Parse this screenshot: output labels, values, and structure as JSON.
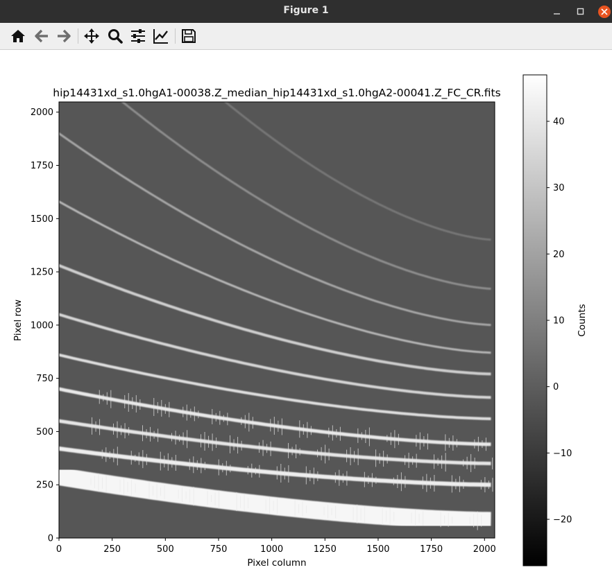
{
  "window": {
    "title": "Figure 1",
    "minimize_icon": "minimize-icon",
    "maximize_icon": "maximize-icon",
    "close_icon": "close-icon"
  },
  "toolbar": {
    "buttons": [
      {
        "name": "home-button",
        "icon": "home-icon"
      },
      {
        "name": "back-button",
        "icon": "arrow-left-icon"
      },
      {
        "name": "forward-button",
        "icon": "arrow-right-icon"
      },
      {
        "name": "pan-button",
        "icon": "move-icon"
      },
      {
        "name": "zoom-button",
        "icon": "magnifier-icon"
      },
      {
        "name": "configure-subplots-button",
        "icon": "sliders-icon"
      },
      {
        "name": "edit-axis-button",
        "icon": "line-chart-icon"
      },
      {
        "name": "save-button",
        "icon": "floppy-disk-icon"
      }
    ]
  },
  "colors": {
    "titlebar": "#2f2f2f",
    "toolbar": "#efefef",
    "close_button": "#e95420",
    "image_background": "#565656"
  },
  "chart_data": {
    "type": "heatmap",
    "title": "hip14431xd_s1.0hgA1-00038.Z_median_hip14431xd_s1.0hgA2-00041.Z_FC_CR.fits",
    "xlabel": "Pixel column",
    "ylabel": "Pixel row",
    "xlim": [
      0,
      2048
    ],
    "ylim": [
      0,
      2048
    ],
    "xticks": [
      "0",
      "250",
      "500",
      "750",
      "1000",
      "1250",
      "1500",
      "1750",
      "2000"
    ],
    "yticks": [
      "0",
      "250",
      "500",
      "750",
      "1000",
      "1250",
      "1500",
      "1750",
      "2000"
    ],
    "colormap": "gray",
    "colorbar": {
      "label": "Counts",
      "range": [
        -27,
        47
      ],
      "ticks": [
        "−20",
        "−10",
        "0",
        "10",
        "20",
        "30",
        "40"
      ]
    },
    "orders": [
      {
        "y_left": 290,
        "y_right": 80,
        "brightness": 1.0,
        "width": 26
      },
      {
        "y_left": 420,
        "y_right": 250,
        "brightness": 0.95,
        "width": 6
      },
      {
        "y_left": 550,
        "y_right": 350,
        "brightness": 0.9,
        "width": 5
      },
      {
        "y_left": 700,
        "y_right": 440,
        "brightness": 0.92,
        "width": 5
      },
      {
        "y_left": 860,
        "y_right": 560,
        "brightness": 0.85,
        "width": 4
      },
      {
        "y_left": 1050,
        "y_right": 660,
        "brightness": 0.8,
        "width": 4
      },
      {
        "y_left": 1280,
        "y_right": 770,
        "brightness": 0.75,
        "width": 4
      },
      {
        "y_left": 1580,
        "y_right": 870,
        "brightness": 0.6,
        "width": 3
      },
      {
        "y_left": 1900,
        "y_right": 1000,
        "brightness": 0.5,
        "width": 3
      },
      {
        "y_left": 2300,
        "y_right": 1170,
        "brightness": 0.35,
        "width": 3
      },
      {
        "y_left": 2800,
        "y_right": 1400,
        "brightness": 0.2,
        "width": 3
      }
    ]
  }
}
